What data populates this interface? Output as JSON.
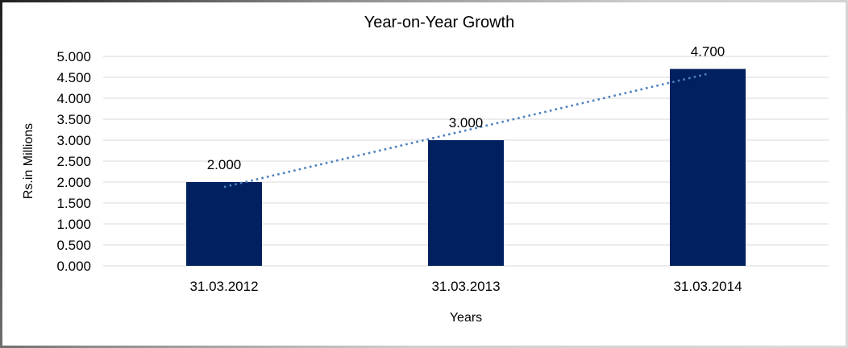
{
  "chart_data": {
    "type": "bar",
    "title": "Year-on-Year Growth",
    "categories": [
      "31.03.2012",
      "31.03.2013",
      "31.03.2014"
    ],
    "values": [
      2.0,
      3.0,
      4.7
    ],
    "data_labels": [
      "2.000",
      "3.000",
      "4.700"
    ],
    "xlabel": "Years",
    "ylabel": "Rs.in Millions",
    "ylim": [
      0,
      5
    ],
    "ytick_labels": [
      "0.000",
      "0.500",
      "1.000",
      "1.500",
      "2.000",
      "2.500",
      "3.000",
      "3.500",
      "4.000",
      "4.500",
      "5.000"
    ],
    "grid": true,
    "legend": "none",
    "colors": {
      "bar": "#002060",
      "gridline": "#D9D9D9",
      "text": "#000000"
    },
    "trendline": {
      "type": "linear",
      "style": "dotted",
      "color": "#4E81BD"
    }
  }
}
